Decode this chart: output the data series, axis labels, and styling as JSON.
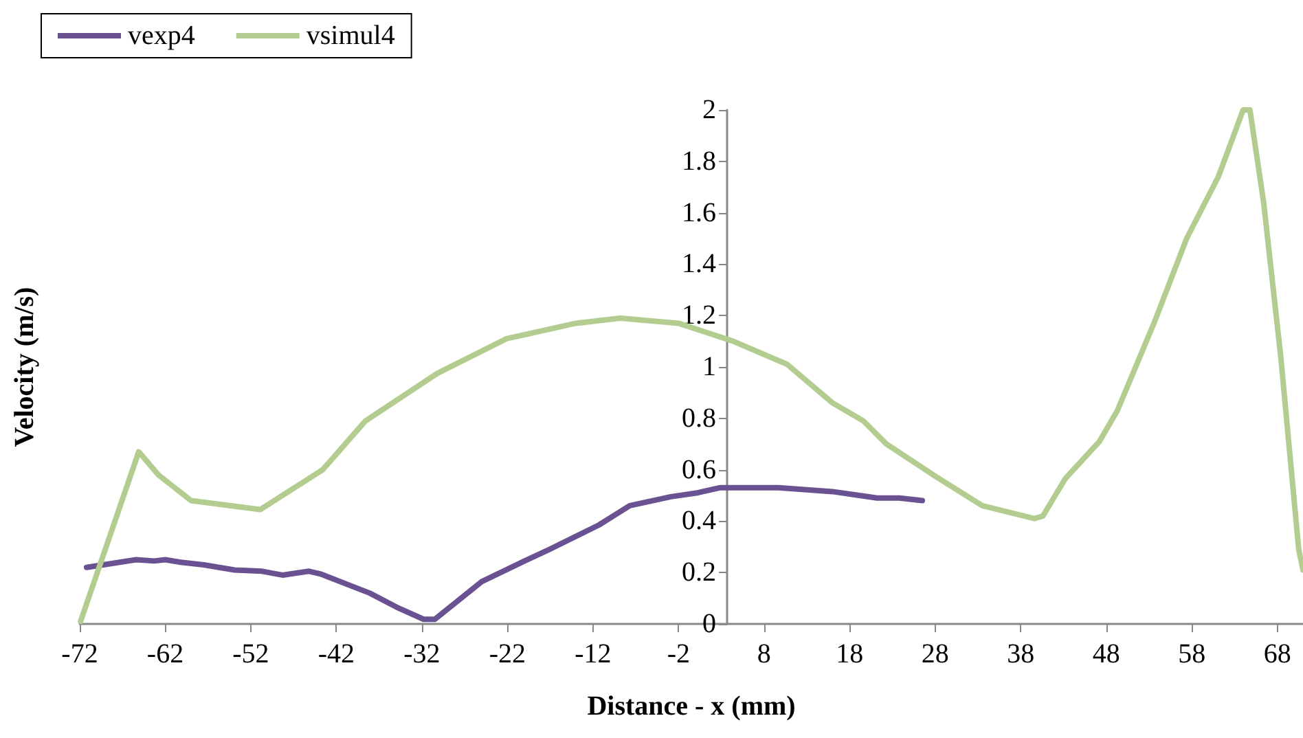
{
  "chart_data": {
    "type": "line",
    "xlabel": "Distance - x (mm)",
    "ylabel": "Velocity (m/s)",
    "xlim": [
      -72,
      71
    ],
    "xticks": [
      -72,
      -62,
      -52,
      -42,
      -32,
      -22,
      -12,
      -2,
      8,
      18,
      28,
      38,
      48,
      58,
      68
    ],
    "ylim": [
      0,
      2
    ],
    "yticks": [
      0,
      0.2,
      0.4,
      0.6,
      0.8,
      1,
      1.2,
      1.4,
      1.6,
      1.8,
      2
    ],
    "grid": false,
    "legend": "top left",
    "marker": "none",
    "line_style": "solid",
    "series": [
      {
        "name": "vexp4",
        "color": "#6a5191",
        "x": [
          -71.2,
          -65.4,
          -63.3,
          -62,
          -60.2,
          -57.5,
          -53.9,
          -50.7,
          -48.3,
          -45.2,
          -43.9,
          -38.1,
          -35,
          -31.8,
          -30.5,
          -25,
          -20,
          -17.1,
          -11.3,
          -7.7,
          -2.9,
          0.2,
          2.8,
          9.7,
          16,
          21.2,
          23.8,
          26.5
        ],
        "values": [
          0.22,
          0.25,
          0.245,
          0.25,
          0.24,
          0.23,
          0.21,
          0.205,
          0.19,
          0.205,
          0.195,
          0.12,
          0.066,
          0.018,
          0.018,
          0.165,
          0.245,
          0.29,
          0.385,
          0.46,
          0.495,
          0.51,
          0.53,
          0.53,
          0.515,
          0.49,
          0.49,
          0.48
        ]
      },
      {
        "name": "vsimul4",
        "color": "#b3cc8f",
        "x": [
          -71.9,
          -65.1,
          -62.8,
          -59,
          -50.9,
          -43.6,
          -38.6,
          -30.2,
          -22.1,
          -14,
          -8.8,
          -2,
          4.4,
          10.7,
          16,
          19.6,
          22.3,
          28,
          33.5,
          39.6,
          40.6,
          43.2,
          47.2,
          49.3,
          53.7,
          57.4,
          61.1,
          64,
          64.8,
          66.4,
          68.4,
          70.5,
          71
        ],
        "values": [
          0.01,
          0.67,
          0.58,
          0.48,
          0.445,
          0.6,
          0.79,
          0.975,
          1.11,
          1.17,
          1.19,
          1.17,
          1.1,
          1.01,
          0.86,
          0.79,
          0.7,
          0.575,
          0.46,
          0.41,
          0.42,
          0.565,
          0.71,
          0.83,
          1.18,
          1.5,
          1.74,
          2,
          2,
          1.64,
          1.04,
          0.29,
          0.21
        ]
      }
    ]
  }
}
